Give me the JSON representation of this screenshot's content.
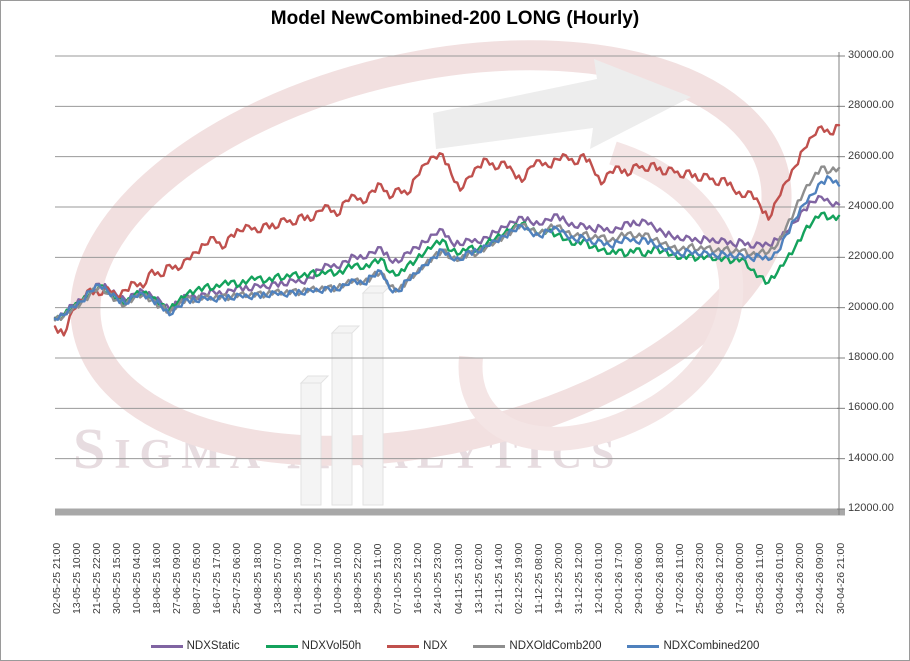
{
  "title": "Model NewCombined-200 LONG (Hourly)",
  "watermark": {
    "word1_initial": "S",
    "word1_rest": "igma",
    "word2_initial": "A",
    "word2_rest": "nalytics"
  },
  "chart_data": {
    "type": "line",
    "title": "Model NewCombined-200 LONG (Hourly)",
    "grid": "horizontal",
    "legend_position": "bottom",
    "y_axis": {
      "min": 12000,
      "max": 30000,
      "step": 2000,
      "side": "right",
      "tick_labels": [
        "30000.00",
        "28000.00",
        "26000.00",
        "24000.00",
        "22000.00",
        "20000.00",
        "18000.00",
        "16000.00",
        "14000.00",
        "12000.00"
      ]
    },
    "x_labels": [
      "02-05-25 21:00",
      "13-05-25 10:00",
      "21-05-25 22:00",
      "30-05-25 15:00",
      "10-06-25 04:00",
      "18-06-25 16:00",
      "27-06-25 09:00",
      "08-07-25 05:00",
      "16-07-25 17:00",
      "25-07-25 06:00",
      "04-08-25 18:00",
      "13-08-25 07:00",
      "21-08-25 19:00",
      "01-09-25 17:00",
      "10-09-25 10:00",
      "18-09-25 22:00",
      "29-09-25 11:00",
      "07-10-25 23:00",
      "16-10-25 12:00",
      "24-10-25 23:00",
      "04-11-25 13:00",
      "13-11-25 02:00",
      "21-11-25 14:00",
      "02-12-25 19:00",
      "11-12-25 08:00",
      "19-12-25 20:00",
      "31-12-25 12:00",
      "12-01-26 01:00",
      "20-01-26 17:00",
      "29-01-26 06:00",
      "06-02-26 18:00",
      "17-02-26 11:00",
      "25-02-26 23:00",
      "06-03-26 12:00",
      "17-03-26 00:00",
      "25-03-26 11:00",
      "03-04-26 01:00",
      "13-04-26 20:00",
      "22-04-26 09:00",
      "30-04-26 21:00"
    ],
    "series": [
      {
        "name": "NDXStatic",
        "color": "#8064a2",
        "values": [
          19600,
          19750,
          20100,
          20300,
          20700,
          20950,
          20750,
          20500,
          20300,
          20550,
          20650,
          20450,
          20250,
          19950,
          20200,
          20500,
          20400,
          20550,
          20650,
          20500,
          20700,
          20850,
          20700,
          20900,
          20800,
          21000,
          20900,
          21100,
          21000,
          21200,
          21500,
          21700,
          21600,
          21850,
          22050,
          21950,
          22200,
          22400,
          21900,
          21800,
          22200,
          22400,
          22600,
          22900,
          23100,
          22600,
          22500,
          22700,
          22600,
          22800,
          23000,
          23200,
          23400,
          23600,
          23400,
          23300,
          23500,
          23700,
          23400,
          23200,
          23300,
          23100,
          23200,
          23000,
          23150,
          23400,
          23300,
          23450,
          23200,
          23000,
          22850,
          22700,
          22800,
          22650,
          22750,
          22600,
          22700,
          22500,
          22650,
          22400,
          22550,
          22500,
          22700,
          23000,
          23400,
          23900,
          24200,
          24400,
          24150,
          24100
        ]
      },
      {
        "name": "NDXVol50h",
        "color": "#14a25c",
        "values": [
          19550,
          19700,
          20000,
          20250,
          20600,
          20850,
          20600,
          20350,
          20200,
          20500,
          20600,
          20400,
          20150,
          19900,
          20250,
          20550,
          20700,
          20850,
          20750,
          20950,
          21050,
          20900,
          21100,
          21200,
          21050,
          21250,
          21150,
          21350,
          21250,
          21400,
          21300,
          21450,
          21350,
          21550,
          21700,
          21550,
          21800,
          21950,
          21400,
          21300,
          21700,
          21900,
          22200,
          22500,
          22700,
          22250,
          22150,
          22400,
          22300,
          22550,
          22750,
          22950,
          23200,
          23350,
          23100,
          22950,
          23100,
          22900,
          22700,
          22500,
          22700,
          22400,
          22300,
          22150,
          22300,
          22100,
          22350,
          22050,
          22400,
          22250,
          22100,
          21950,
          22100,
          21950,
          22050,
          21900,
          22000,
          21850,
          21950,
          21500,
          21250,
          21000,
          21400,
          21900,
          22400,
          23000,
          23400,
          23750,
          23550,
          23650
        ]
      },
      {
        "name": "NDX",
        "color": "#c0504d",
        "values": [
          19250,
          18900,
          19900,
          20300,
          20750,
          20500,
          20800,
          20450,
          20700,
          21000,
          20800,
          21500,
          21250,
          21700,
          21500,
          21950,
          22200,
          22500,
          22800,
          22350,
          22900,
          23050,
          23250,
          23000,
          23350,
          23150,
          23550,
          23300,
          23700,
          23450,
          23850,
          24050,
          23650,
          24250,
          24450,
          24150,
          24650,
          24900,
          24350,
          24750,
          24500,
          25200,
          25700,
          26000,
          26100,
          25300,
          24650,
          25200,
          25600,
          25900,
          25500,
          25800,
          25400,
          25000,
          25600,
          25850,
          25600,
          25900,
          26050,
          25700,
          26100,
          25600,
          24900,
          25400,
          25600,
          25250,
          25700,
          25450,
          25750,
          25300,
          25550,
          25200,
          25450,
          25050,
          25300,
          24900,
          25150,
          24700,
          24400,
          24600,
          24100,
          23500,
          24300,
          25000,
          25600,
          26300,
          26800,
          27200,
          26900,
          27250
        ]
      },
      {
        "name": "NDXOldComb200",
        "color": "#8e8e8e",
        "values": [
          19500,
          19650,
          19950,
          20200,
          20550,
          20800,
          20550,
          20300,
          20100,
          20400,
          20500,
          20300,
          20050,
          19800,
          20100,
          20400,
          20300,
          20450,
          20350,
          20500,
          20400,
          20550,
          20450,
          20600,
          20500,
          20650,
          20550,
          20700,
          20600,
          20750,
          20700,
          20850,
          20750,
          20950,
          21100,
          21000,
          21250,
          21400,
          20850,
          20700,
          21100,
          21350,
          21700,
          22050,
          22300,
          21950,
          21900,
          22200,
          22150,
          22400,
          22600,
          22850,
          23100,
          23300,
          23100,
          22950,
          23150,
          23250,
          23000,
          22850,
          22950,
          22750,
          22850,
          22650,
          22800,
          22950,
          22800,
          22950,
          22700,
          22550,
          22400,
          22300,
          22450,
          22300,
          22400,
          22250,
          22350,
          22200,
          22300,
          22100,
          22200,
          22200,
          22500,
          23200,
          23900,
          24600,
          25100,
          25600,
          25400,
          25550
        ]
      },
      {
        "name": "NDXCombined200",
        "color": "#4f81bd",
        "values": [
          19550,
          19700,
          20050,
          20250,
          20650,
          20900,
          20650,
          20400,
          20150,
          20450,
          20550,
          20350,
          20100,
          19700,
          20050,
          20350,
          20250,
          20400,
          20300,
          20450,
          20350,
          20500,
          20400,
          20550,
          20450,
          20600,
          20500,
          20650,
          20550,
          20700,
          20650,
          20800,
          20700,
          20900,
          21100,
          20950,
          21250,
          21450,
          20750,
          20650,
          21100,
          21350,
          21700,
          22000,
          22300,
          21950,
          21900,
          22250,
          22200,
          22450,
          22650,
          22850,
          23050,
          23250,
          23000,
          22850,
          23050,
          23150,
          22900,
          22700,
          22800,
          22550,
          22650,
          22450,
          22600,
          22750,
          22600,
          22750,
          22500,
          22350,
          22250,
          22100,
          22250,
          22100,
          22200,
          22050,
          22150,
          22000,
          22100,
          21950,
          22050,
          21900,
          22200,
          22900,
          23500,
          24100,
          24500,
          25000,
          25150,
          24850
        ]
      }
    ]
  }
}
